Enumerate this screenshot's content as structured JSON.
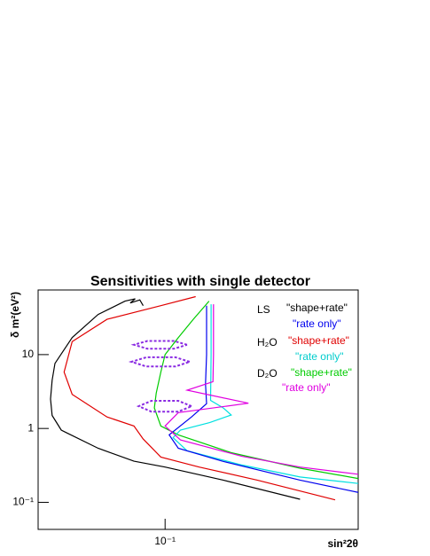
{
  "chart_data": {
    "type": "line",
    "title": "Sensitivities with single detector",
    "x_label": "sin²2θ",
    "y_label": "δ m²(eV²)",
    "xscale": "log",
    "yscale": "log",
    "xlim": [
      0.022,
      1
    ],
    "ylim": [
      0.043,
      75
    ],
    "xticks": [
      {
        "value": 0.1,
        "label": "10⁻¹"
      }
    ],
    "yticks": [
      {
        "value": 0.1,
        "label": "10⁻¹"
      },
      1,
      10
    ],
    "series": [
      {
        "color": "#000000",
        "linestyle": "solid",
        "x": [
          0.5,
          0.2,
          0.1,
          0.069,
          0.045,
          0.031,
          0.029,
          0.026,
          0.0255,
          0.026,
          0.0269,
          0.033,
          0.045,
          0.062,
          0.07,
          0.066,
          0.074,
          0.077
        ],
        "y": [
          0.11,
          0.2,
          0.3,
          0.36,
          0.54,
          0.87,
          0.95,
          1.5,
          2.5,
          4.5,
          7.6,
          17,
          35,
          53,
          57,
          50,
          55,
          46
        ]
      },
      {
        "color": "#e00000",
        "linestyle": "solid",
        "x": [
          0.76,
          0.3,
          0.15,
          0.095,
          0.077,
          0.069,
          0.05,
          0.033,
          0.03,
          0.033,
          0.05,
          0.095,
          0.144
        ],
        "y": [
          0.108,
          0.2,
          0.3,
          0.41,
          0.72,
          1.08,
          1.43,
          2.9,
          5.8,
          15,
          30,
          46,
          61
        ]
      },
      {
        "color": "#00cc00",
        "linestyle": "solid",
        "x": [
          0.169,
          0.14,
          0.117,
          0.1,
          0.095,
          0.09,
          0.088,
          0.095,
          0.117,
          0.22,
          0.5,
          1.0
        ],
        "y": [
          53,
          30,
          17,
          10,
          5.8,
          3.0,
          1.9,
          1.08,
          0.82,
          0.47,
          0.29,
          0.21
        ]
      },
      {
        "color": "#00e0e0",
        "linestyle": "solid",
        "x": [
          0.173,
          0.173,
          0.172,
          0.2,
          0.22,
          0.17,
          0.12,
          0.11,
          0.13,
          0.25,
          0.5,
          1.0
        ],
        "y": [
          48,
          10,
          2.4,
          1.9,
          1.52,
          1.2,
          0.95,
          0.75,
          0.5,
          0.32,
          0.22,
          0.18
        ]
      },
      {
        "color": "#0000ee",
        "linestyle": "solid",
        "x": [
          0.164,
          0.164,
          0.162,
          0.164,
          0.137,
          0.105,
          0.117,
          0.198,
          0.5,
          1.0
        ],
        "y": [
          46,
          10,
          4.0,
          2.17,
          1.43,
          0.82,
          0.54,
          0.36,
          0.2,
          0.136
        ]
      },
      {
        "color": "#e000e0",
        "linestyle": "solid",
        "x": [
          0.178,
          0.178,
          0.177,
          0.13,
          0.27,
          0.117,
          0.1,
          0.12,
          0.25,
          0.5,
          1.0
        ],
        "y": [
          48,
          10,
          4.3,
          3.3,
          2.2,
          1.64,
          1.08,
          0.7,
          0.42,
          0.3,
          0.24
        ]
      },
      {
        "color": "#8a2be2",
        "linestyle": "dashed",
        "x": [
          0.13,
          0.111,
          0.081,
          0.069,
          0.081,
          0.111,
          0.13,
          null,
          0.134,
          0.113,
          0.08,
          0.067,
          0.08,
          0.113,
          0.134,
          null,
          0.137,
          0.117,
          0.085,
          0.073,
          0.085,
          0.117,
          0.137
        ],
        "y": [
          13.6,
          15.3,
          15.3,
          13.6,
          12.0,
          12.0,
          13.6,
          null,
          8.0,
          9.2,
          9.2,
          8.0,
          6.9,
          6.9,
          8.0,
          null,
          2.0,
          2.37,
          2.37,
          2.0,
          1.69,
          1.69,
          2.0
        ]
      }
    ],
    "annotations": [
      {
        "text": "LS",
        "color": "#000000"
      },
      {
        "text": "\"shape+rate\"",
        "color": "#000000"
      },
      {
        "text": "\"rate only\"",
        "color": "#0000ee"
      },
      {
        "text": "H₂O",
        "color": "#000000"
      },
      {
        "text": "\"shape+rate\"",
        "color": "#e00000"
      },
      {
        "text": "\"rate only\"",
        "color": "#00cccc"
      },
      {
        "text": "D₂O",
        "color": "#000000"
      },
      {
        "text": "\"shape+rate\"",
        "color": "#00cc00"
      },
      {
        "text": "\"rate only\"",
        "color": "#e000e0"
      }
    ]
  }
}
